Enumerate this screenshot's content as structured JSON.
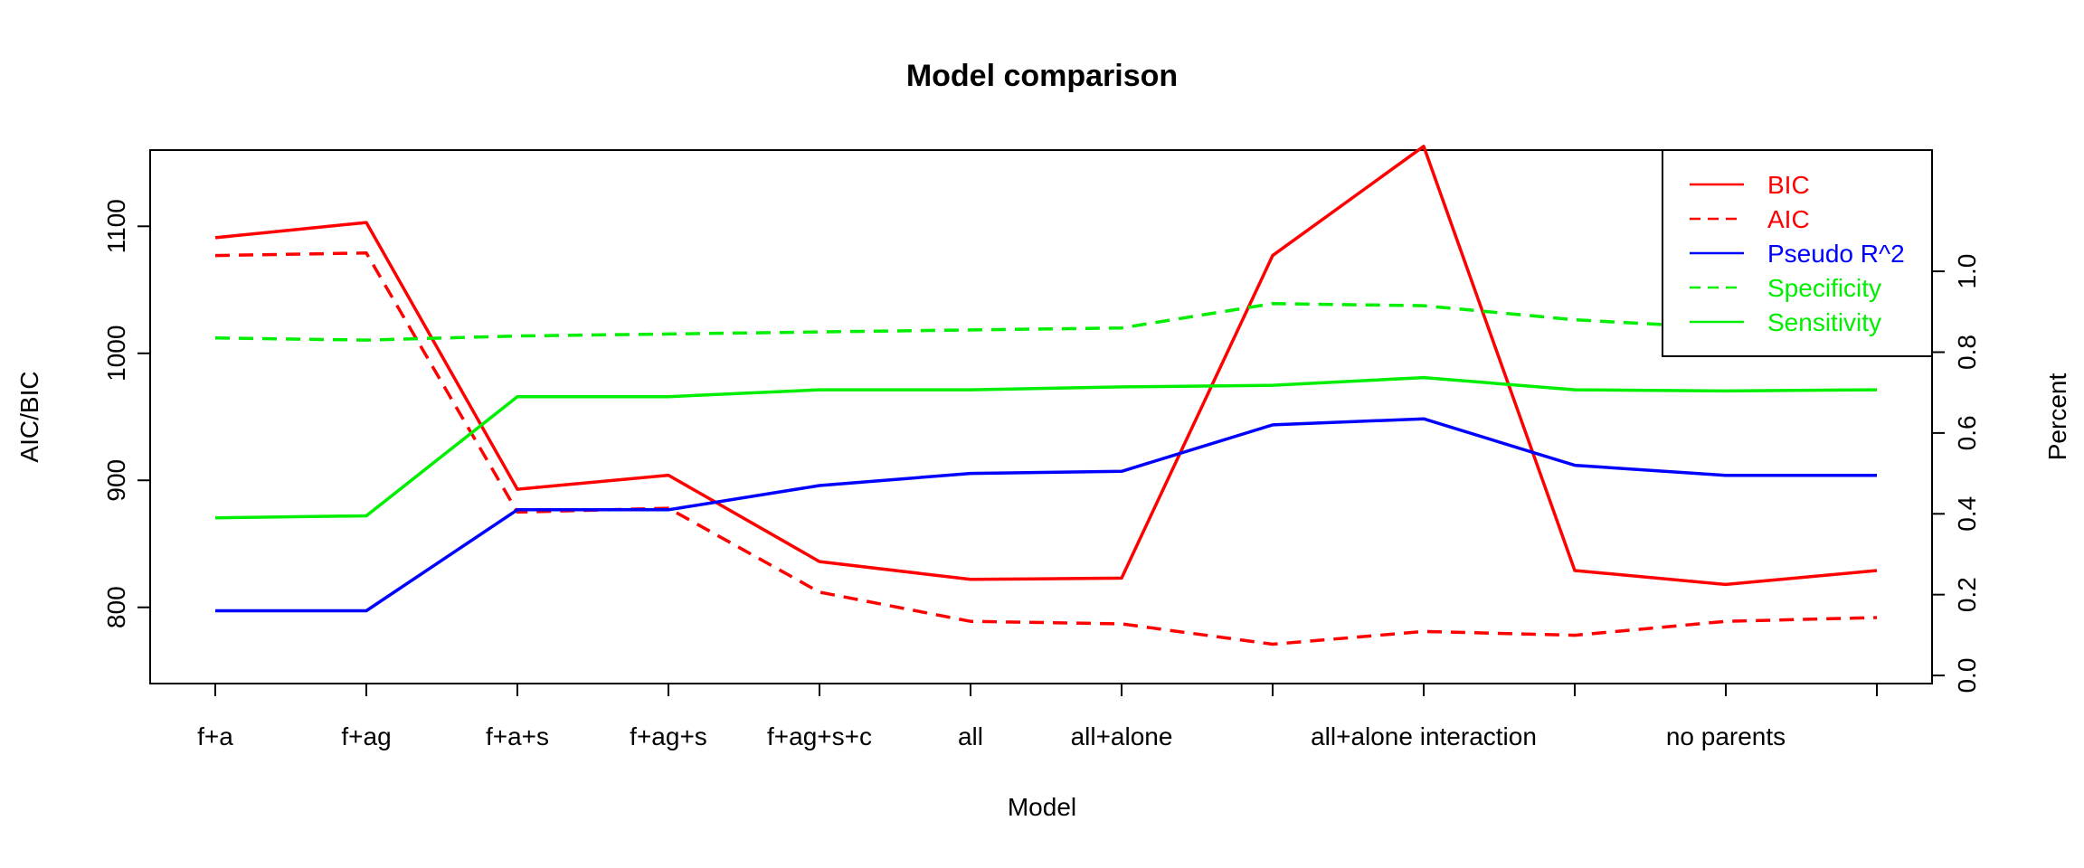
{
  "chart_data": {
    "type": "line",
    "title": "Model comparison",
    "xlabel": "Model",
    "ylabel_left": "AIC/BIC",
    "ylabel_right": "Percent",
    "categories": [
      "f+a",
      "f+ag",
      "f+a+s",
      "f+ag+s",
      "f+ag+s+c",
      "all",
      "all+alone",
      "",
      "all+alone interaction",
      "",
      "no parents",
      ""
    ],
    "x_tick_labels": [
      {
        "label": "f+a",
        "pos": 0
      },
      {
        "label": "f+ag",
        "pos": 1
      },
      {
        "label": "f+a+s",
        "pos": 2
      },
      {
        "label": "f+ag+s",
        "pos": 3
      },
      {
        "label": "f+ag+s+c",
        "pos": 4
      },
      {
        "label": "all",
        "pos": 5
      },
      {
        "label": "all+alone",
        "pos": 6
      },
      {
        "label": "all+alone interaction",
        "pos": 8
      },
      {
        "label": "no parents",
        "pos": 10
      }
    ],
    "ylim_left": [
      740,
      1160
    ],
    "yticks_left": [
      800,
      900,
      1000,
      1100
    ],
    "ylim_right": [
      -0.02,
      1.3
    ],
    "yticks_right": [
      0.0,
      0.2,
      0.4,
      0.6,
      0.8,
      1.0
    ],
    "grid": false,
    "legend_position": "top-right",
    "series": [
      {
        "name": "BIC",
        "axis": "left",
        "color": "#ff0000",
        "dash": "solid",
        "values": [
          1091,
          1103,
          893,
          904,
          836,
          822,
          823,
          1077,
          1163,
          829,
          818,
          829
        ]
      },
      {
        "name": "AIC",
        "axis": "left",
        "color": "#ff0000",
        "dash": "dashed",
        "values": [
          1077,
          1079,
          875,
          878,
          812,
          789,
          787,
          771,
          781,
          778,
          789,
          792
        ]
      },
      {
        "name": "Pseudo R^2",
        "axis": "right",
        "color": "#0000ff",
        "dash": "solid",
        "values": [
          0.16,
          0.16,
          0.41,
          0.41,
          0.47,
          0.5,
          0.505,
          0.62,
          0.635,
          0.52,
          0.495,
          0.495
        ]
      },
      {
        "name": "Specificity",
        "axis": "right",
        "color": "#00ee00",
        "dash": "dashed",
        "values": [
          0.835,
          0.83,
          0.84,
          0.845,
          0.85,
          0.855,
          0.86,
          0.92,
          0.915,
          0.88,
          0.86,
          0.86
        ]
      },
      {
        "name": "Sensitivity",
        "axis": "right",
        "color": "#00ee00",
        "dash": "solid",
        "values": [
          0.39,
          0.395,
          0.69,
          0.69,
          0.707,
          0.707,
          0.714,
          0.718,
          0.737,
          0.707,
          0.704,
          0.707
        ]
      }
    ]
  }
}
